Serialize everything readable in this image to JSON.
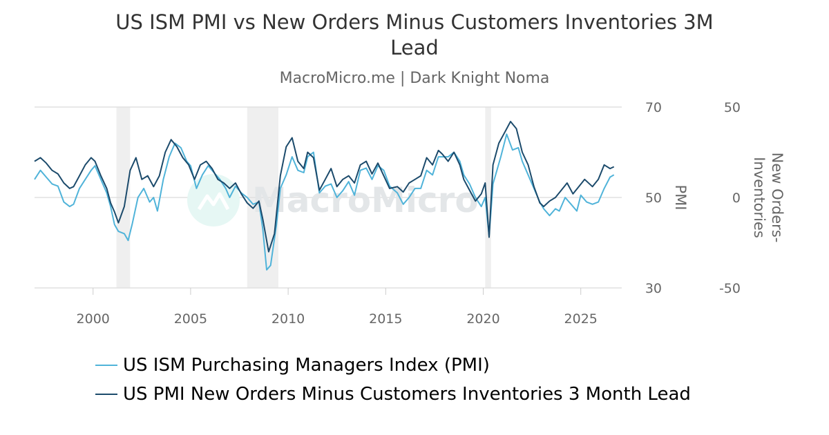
{
  "chart_data": {
    "type": "line",
    "title_lines": [
      "US ISM PMI vs New Orders Minus Customers Inventories 3M",
      "Lead"
    ],
    "subtitle": "MacroMicro.me | Dark Knight Noma",
    "watermark": "MacroMicro",
    "colors": {
      "pmi": "#4fb3d9",
      "lead": "#1b4a6b",
      "recession": "#efefef",
      "grid": "#e0e0e0"
    },
    "x_ticks": [
      2000,
      2005,
      2010,
      2015,
      2020,
      2025
    ],
    "xlim": [
      1997,
      2027.1
    ],
    "y_left": {
      "label": "PMI",
      "ticks": [
        "70",
        "50",
        "30"
      ],
      "range": [
        30,
        70
      ]
    },
    "y_right": {
      "label_lines": [
        "New Orders-",
        "Inventories"
      ],
      "ticks": [
        "50",
        "0",
        "-50"
      ],
      "range": [
        -50,
        50
      ]
    },
    "recessions": [
      [
        2001.2,
        2001.9
      ],
      [
        2007.9,
        2009.5
      ],
      [
        2020.1,
        2020.4
      ]
    ],
    "series": [
      {
        "name": "US ISM Purchasing Managers Index (PMI)",
        "axis": "left",
        "points": [
          [
            1997.0,
            54
          ],
          [
            1997.3,
            56
          ],
          [
            1997.6,
            54.5
          ],
          [
            1997.9,
            53
          ],
          [
            1998.2,
            52.5
          ],
          [
            1998.5,
            49
          ],
          [
            1998.8,
            48
          ],
          [
            1999.0,
            48.5
          ],
          [
            1999.3,
            52
          ],
          [
            1999.6,
            54
          ],
          [
            1999.9,
            56
          ],
          [
            2000.1,
            57
          ],
          [
            2000.4,
            54
          ],
          [
            2000.7,
            51
          ],
          [
            2000.9,
            48
          ],
          [
            2001.1,
            44
          ],
          [
            2001.3,
            42.5
          ],
          [
            2001.6,
            42
          ],
          [
            2001.8,
            40.5
          ],
          [
            2002.0,
            44
          ],
          [
            2002.3,
            50
          ],
          [
            2002.6,
            52
          ],
          [
            2002.9,
            49
          ],
          [
            2003.1,
            50
          ],
          [
            2003.3,
            47
          ],
          [
            2003.6,
            54
          ],
          [
            2003.9,
            59
          ],
          [
            2004.2,
            62
          ],
          [
            2004.5,
            61
          ],
          [
            2004.8,
            58
          ],
          [
            2005.0,
            57
          ],
          [
            2005.3,
            52
          ],
          [
            2005.6,
            55
          ],
          [
            2005.9,
            57
          ],
          [
            2006.2,
            55.5
          ],
          [
            2006.5,
            54
          ],
          [
            2006.8,
            52
          ],
          [
            2007.0,
            50
          ],
          [
            2007.3,
            52.5
          ],
          [
            2007.6,
            51
          ],
          [
            2007.9,
            50
          ],
          [
            2008.2,
            48.5
          ],
          [
            2008.5,
            49
          ],
          [
            2008.7,
            43
          ],
          [
            2008.9,
            34
          ],
          [
            2009.1,
            35
          ],
          [
            2009.4,
            44
          ],
          [
            2009.6,
            52
          ],
          [
            2009.9,
            55
          ],
          [
            2010.2,
            59
          ],
          [
            2010.5,
            56
          ],
          [
            2010.8,
            55.5
          ],
          [
            2011.0,
            59
          ],
          [
            2011.3,
            60
          ],
          [
            2011.6,
            51
          ],
          [
            2011.9,
            52.5
          ],
          [
            2012.2,
            53
          ],
          [
            2012.5,
            50
          ],
          [
            2012.8,
            51.5
          ],
          [
            2013.1,
            53.5
          ],
          [
            2013.4,
            50.5
          ],
          [
            2013.7,
            56
          ],
          [
            2014.0,
            56.5
          ],
          [
            2014.3,
            54
          ],
          [
            2014.6,
            57
          ],
          [
            2014.9,
            56
          ],
          [
            2015.2,
            52.5
          ],
          [
            2015.6,
            51
          ],
          [
            2015.9,
            48.5
          ],
          [
            2016.2,
            50
          ],
          [
            2016.5,
            52
          ],
          [
            2016.8,
            52
          ],
          [
            2017.1,
            56
          ],
          [
            2017.4,
            55
          ],
          [
            2017.7,
            59
          ],
          [
            2017.9,
            59
          ],
          [
            2018.2,
            59
          ],
          [
            2018.5,
            60
          ],
          [
            2018.8,
            58
          ],
          [
            2019.0,
            55
          ],
          [
            2019.3,
            53
          ],
          [
            2019.6,
            50
          ],
          [
            2019.9,
            48
          ],
          [
            2020.1,
            50
          ],
          [
            2020.3,
            41.5
          ],
          [
            2020.5,
            53
          ],
          [
            2020.7,
            56
          ],
          [
            2020.9,
            59
          ],
          [
            2021.2,
            64
          ],
          [
            2021.5,
            60.5
          ],
          [
            2021.8,
            61
          ],
          [
            2022.0,
            58
          ],
          [
            2022.3,
            55
          ],
          [
            2022.6,
            52
          ],
          [
            2022.9,
            49
          ],
          [
            2023.1,
            47.5
          ],
          [
            2023.4,
            46
          ],
          [
            2023.7,
            47.5
          ],
          [
            2023.9,
            47
          ],
          [
            2024.2,
            50
          ],
          [
            2024.5,
            48.5
          ],
          [
            2024.8,
            47
          ],
          [
            2025.0,
            50.5
          ],
          [
            2025.3,
            49
          ],
          [
            2025.6,
            48.5
          ],
          [
            2025.9,
            49
          ],
          [
            2026.2,
            52
          ],
          [
            2026.5,
            54.5
          ],
          [
            2026.7,
            55
          ]
        ]
      },
      {
        "name": "US PMI New Orders Minus Customers Inventories 3 Month Lead",
        "axis": "right",
        "points": [
          [
            1997.0,
            20
          ],
          [
            1997.3,
            22
          ],
          [
            1997.6,
            19
          ],
          [
            1997.9,
            15
          ],
          [
            1998.2,
            13
          ],
          [
            1998.5,
            8
          ],
          [
            1998.8,
            5
          ],
          [
            1999.0,
            6
          ],
          [
            1999.3,
            12
          ],
          [
            1999.6,
            18
          ],
          [
            1999.9,
            22
          ],
          [
            2000.1,
            20
          ],
          [
            2000.4,
            12
          ],
          [
            2000.7,
            5
          ],
          [
            2000.9,
            -3
          ],
          [
            2001.1,
            -8
          ],
          [
            2001.3,
            -14
          ],
          [
            2001.6,
            -5
          ],
          [
            2001.9,
            15
          ],
          [
            2002.2,
            22
          ],
          [
            2002.5,
            10
          ],
          [
            2002.8,
            12
          ],
          [
            2003.1,
            6
          ],
          [
            2003.4,
            12
          ],
          [
            2003.7,
            25
          ],
          [
            2004.0,
            32
          ],
          [
            2004.3,
            28
          ],
          [
            2004.6,
            22
          ],
          [
            2004.9,
            18
          ],
          [
            2005.2,
            10
          ],
          [
            2005.5,
            18
          ],
          [
            2005.8,
            20
          ],
          [
            2006.1,
            16
          ],
          [
            2006.4,
            10
          ],
          [
            2006.7,
            8
          ],
          [
            2007.0,
            5
          ],
          [
            2007.3,
            8
          ],
          [
            2007.6,
            2
          ],
          [
            2007.9,
            -3
          ],
          [
            2008.2,
            -6
          ],
          [
            2008.5,
            -2
          ],
          [
            2008.7,
            -12
          ],
          [
            2009.0,
            -30
          ],
          [
            2009.3,
            -20
          ],
          [
            2009.6,
            12
          ],
          [
            2009.9,
            28
          ],
          [
            2010.2,
            33
          ],
          [
            2010.5,
            20
          ],
          [
            2010.8,
            16
          ],
          [
            2011.0,
            25
          ],
          [
            2011.3,
            22
          ],
          [
            2011.6,
            4
          ],
          [
            2011.9,
            10
          ],
          [
            2012.2,
            16
          ],
          [
            2012.5,
            6
          ],
          [
            2012.8,
            10
          ],
          [
            2013.1,
            12
          ],
          [
            2013.4,
            8
          ],
          [
            2013.7,
            18
          ],
          [
            2014.0,
            20
          ],
          [
            2014.3,
            13
          ],
          [
            2014.6,
            19
          ],
          [
            2014.9,
            12
          ],
          [
            2015.2,
            5
          ],
          [
            2015.6,
            6
          ],
          [
            2015.9,
            3
          ],
          [
            2016.2,
            8
          ],
          [
            2016.5,
            10
          ],
          [
            2016.8,
            12
          ],
          [
            2017.1,
            22
          ],
          [
            2017.4,
            18
          ],
          [
            2017.7,
            26
          ],
          [
            2017.9,
            24
          ],
          [
            2018.2,
            20
          ],
          [
            2018.5,
            25
          ],
          [
            2018.8,
            18
          ],
          [
            2019.0,
            10
          ],
          [
            2019.3,
            4
          ],
          [
            2019.6,
            -2
          ],
          [
            2019.9,
            2
          ],
          [
            2020.1,
            8
          ],
          [
            2020.3,
            -22
          ],
          [
            2020.5,
            18
          ],
          [
            2020.8,
            30
          ],
          [
            2021.1,
            36
          ],
          [
            2021.4,
            42
          ],
          [
            2021.7,
            38
          ],
          [
            2022.0,
            25
          ],
          [
            2022.3,
            18
          ],
          [
            2022.6,
            6
          ],
          [
            2022.9,
            -3
          ],
          [
            2023.1,
            -5
          ],
          [
            2023.4,
            -2
          ],
          [
            2023.7,
            0
          ],
          [
            2024.0,
            4
          ],
          [
            2024.3,
            8
          ],
          [
            2024.6,
            2
          ],
          [
            2024.9,
            6
          ],
          [
            2025.2,
            10
          ],
          [
            2025.6,
            6
          ],
          [
            2025.9,
            10
          ],
          [
            2026.2,
            18
          ],
          [
            2026.5,
            16
          ],
          [
            2026.7,
            17
          ]
        ]
      }
    ]
  }
}
